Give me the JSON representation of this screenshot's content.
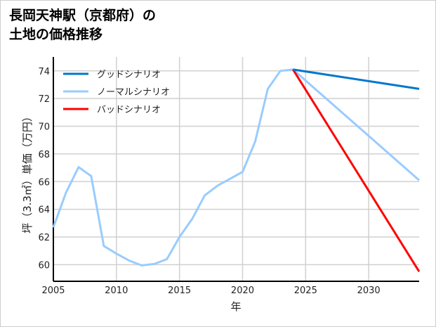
{
  "chart_data": {
    "type": "line",
    "title_lines": [
      "長岡天神駅（京都府）の",
      "土地の価格推移"
    ],
    "xlabel": "年",
    "ylabel": "坪（3.3㎡）単価（万円）",
    "xlim": [
      2005,
      2034
    ],
    "ylim": [
      58.8,
      74.6
    ],
    "xticks": [
      2005,
      2010,
      2015,
      2020,
      2025,
      2030
    ],
    "yticks": [
      60,
      62,
      64,
      66,
      68,
      70,
      72,
      74
    ],
    "grid": true,
    "legend_position": "top-left",
    "series": [
      {
        "name": "グッドシナリオ",
        "color": "#0077cc",
        "x": [
          2024,
          2034
        ],
        "y": [
          74.1,
          72.7
        ]
      },
      {
        "name": "ノーマルシナリオ",
        "color": "#99ccff",
        "x": [
          2005,
          2006,
          2007,
          2008,
          2009,
          2010,
          2011,
          2012,
          2013,
          2014,
          2015,
          2016,
          2017,
          2018,
          2019,
          2020,
          2021,
          2022,
          2023,
          2024,
          2034
        ],
        "y": [
          62.7,
          65.2,
          67.05,
          66.4,
          61.35,
          60.8,
          60.3,
          59.95,
          60.05,
          60.4,
          62.0,
          63.3,
          65.0,
          65.7,
          66.2,
          66.7,
          68.9,
          72.7,
          74.0,
          74.1,
          66.1
        ]
      },
      {
        "name": "バッドシナリオ",
        "color": "#ff0000",
        "x": [
          2024,
          2034
        ],
        "y": [
          74.1,
          59.5
        ]
      }
    ]
  }
}
